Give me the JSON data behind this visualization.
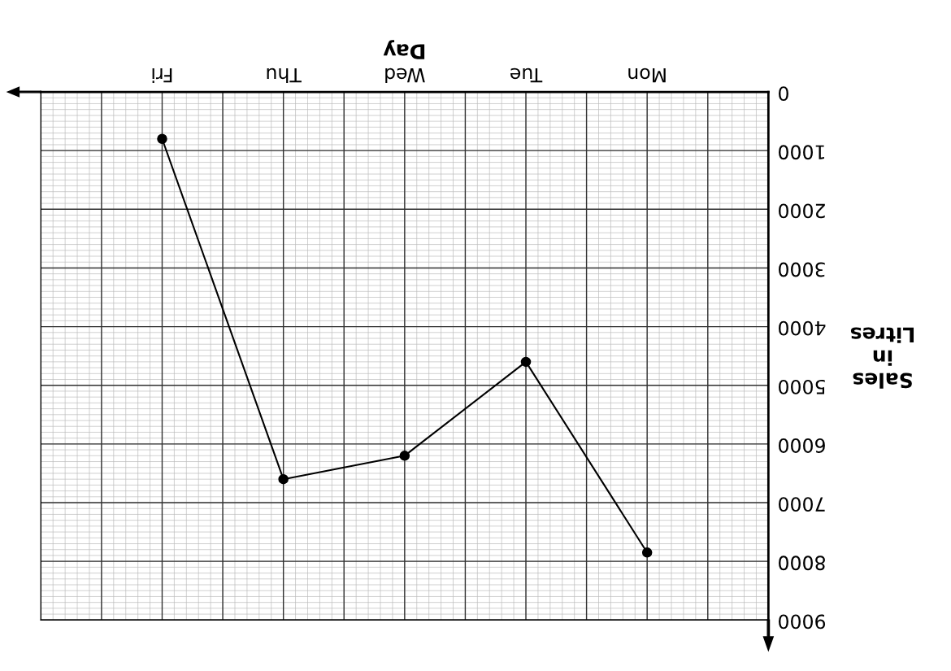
{
  "chart_data": {
    "type": "line",
    "xlabel": "Day",
    "ylabel": "Sales\nin\nLitres",
    "categories": [
      "Fri",
      "Thu",
      "Wed",
      "Tue",
      "Mon"
    ],
    "series": [
      {
        "color": "#000000",
        "values": [
          800,
          6600,
          6200,
          4600,
          7850
        ]
      }
    ],
    "ylim": [
      9000,
      0
    ],
    "yticks": [
      0,
      1000,
      2000,
      3000,
      4000,
      5000,
      6000,
      7000,
      8000,
      9000
    ],
    "grid": true,
    "marker": "circle",
    "line_style": "solid"
  }
}
